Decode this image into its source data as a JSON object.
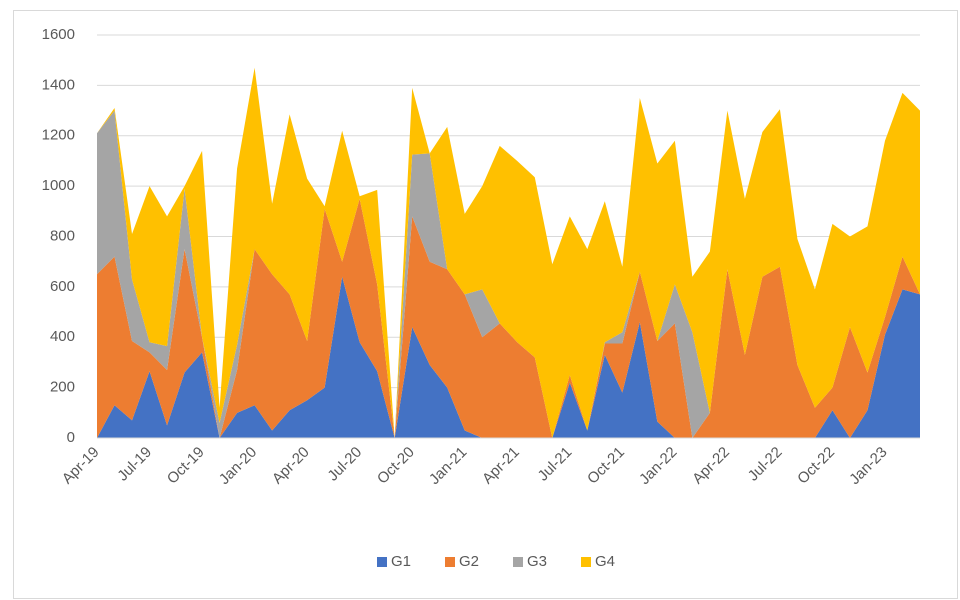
{
  "chart_data": {
    "type": "stacked_area",
    "categories": [
      "Apr-19",
      null,
      null,
      "Jul-19",
      null,
      null,
      "Oct-19",
      null,
      null,
      "Jan-20",
      null,
      null,
      "Apr-20",
      null,
      null,
      "Jul-20",
      null,
      null,
      "Oct-20",
      null,
      null,
      "Jan-21",
      null,
      null,
      "Apr-21",
      null,
      null,
      "Jul-21",
      null,
      null,
      "Oct-21",
      null,
      null,
      "Jan-22",
      null,
      null,
      "Apr-22",
      null,
      null,
      "Jul-22",
      null,
      null,
      "Oct-22",
      null,
      null,
      "Jan-23",
      null,
      null
    ],
    "series": [
      {
        "name": "G1",
        "color": "#4472c4",
        "values": [
          0,
          130,
          70,
          265,
          50,
          260,
          340,
          0,
          100,
          130,
          30,
          110,
          150,
          200,
          640,
          380,
          265,
          0,
          440,
          290,
          200,
          30,
          0,
          0,
          0,
          0,
          0,
          220,
          30,
          330,
          180,
          460,
          65,
          0,
          0,
          0,
          0,
          0,
          0,
          0,
          0,
          0,
          110,
          0,
          110,
          410,
          590,
          570
        ]
      },
      {
        "name": "G2",
        "color": "#ed7d31",
        "values": [
          650,
          590,
          315,
          75,
          220,
          490,
          60,
          0,
          170,
          620,
          620,
          460,
          235,
          710,
          60,
          570,
          345,
          0,
          440,
          410,
          470,
          540,
          400,
          455,
          380,
          320,
          0,
          30,
          0,
          45,
          195,
          200,
          320,
          455,
          0,
          100,
          670,
          330,
          640,
          680,
          290,
          120,
          90,
          440,
          150,
          70,
          130,
          0
        ]
      },
      {
        "name": "G3",
        "color": "#a5a5a5",
        "values": [
          560,
          580,
          245,
          40,
          95,
          240,
          0,
          60,
          100,
          0,
          0,
          0,
          0,
          0,
          0,
          0,
          0,
          0,
          245,
          430,
          0,
          0,
          190,
          0,
          0,
          0,
          0,
          0,
          0,
          5,
          45,
          0,
          0,
          155,
          420,
          0,
          0,
          0,
          0,
          0,
          0,
          0,
          0,
          0,
          0,
          0,
          0,
          0
        ]
      },
      {
        "name": "G4",
        "color": "#ffc000",
        "values": [
          0,
          10,
          180,
          620,
          515,
          10,
          740,
          60,
          700,
          720,
          280,
          715,
          645,
          10,
          520,
          10,
          375,
          0,
          265,
          0,
          565,
          320,
          410,
          705,
          720,
          715,
          690,
          630,
          720,
          560,
          260,
          690,
          705,
          570,
          220,
          640,
          630,
          620,
          575,
          625,
          500,
          470,
          650,
          360,
          580,
          700,
          650,
          730
        ]
      }
    ],
    "ylim": [
      0,
      1600
    ],
    "yticks": [
      0,
      200,
      400,
      600,
      800,
      1000,
      1200,
      1400,
      1600
    ],
    "grid": true,
    "legend": "bottom"
  }
}
